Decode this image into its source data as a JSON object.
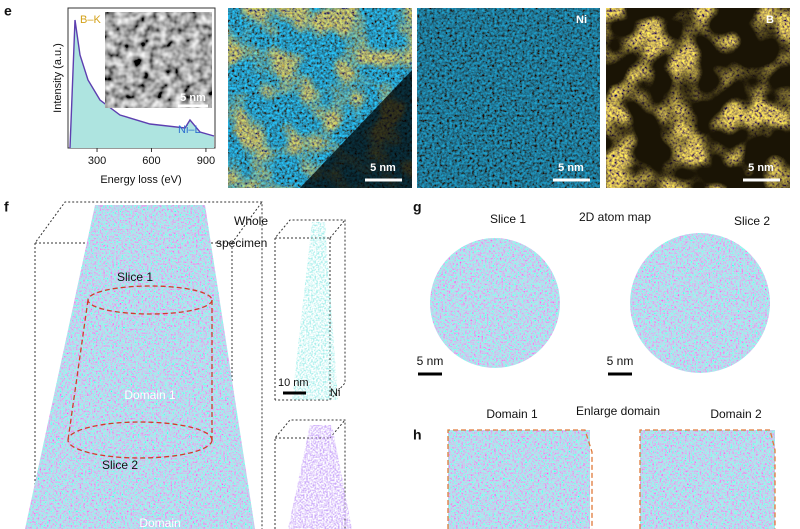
{
  "panel_e": {
    "label": "e",
    "spectrum": {
      "y_label": "Intensity (a.u.)",
      "x_label": "Energy loss (eV)",
      "edge_b": "B–K",
      "edge_ni": "Ni–L",
      "inset_scale": "5 nm",
      "xlim": [
        140,
        950
      ],
      "xticks": [
        300,
        600,
        900
      ]
    },
    "maps": [
      {
        "scale": "5 nm",
        "element": null
      },
      {
        "scale": "5 nm",
        "element": "Ni"
      },
      {
        "scale": "5 nm",
        "element": "B"
      }
    ]
  },
  "panel_f": {
    "label": "f",
    "whole_1": "Whole",
    "whole_2": "specimen",
    "slice_1": "Slice 1",
    "domain_1": "Domain 1",
    "slice_2": "Slice 2",
    "domain_2": "Domain",
    "scale": "10 nm",
    "element": "Ni"
  },
  "panel_g": {
    "label": "g",
    "slice_1": "Slice 1",
    "title": "2D  atom  map",
    "slice_2": "Slice 2",
    "scale_1": "5 nm",
    "scale_2": "5 nm"
  },
  "panel_h": {
    "label": "h",
    "domain_1": "Domain 1",
    "title": "Enlarge domain",
    "domain_2": "Domain 2"
  }
}
